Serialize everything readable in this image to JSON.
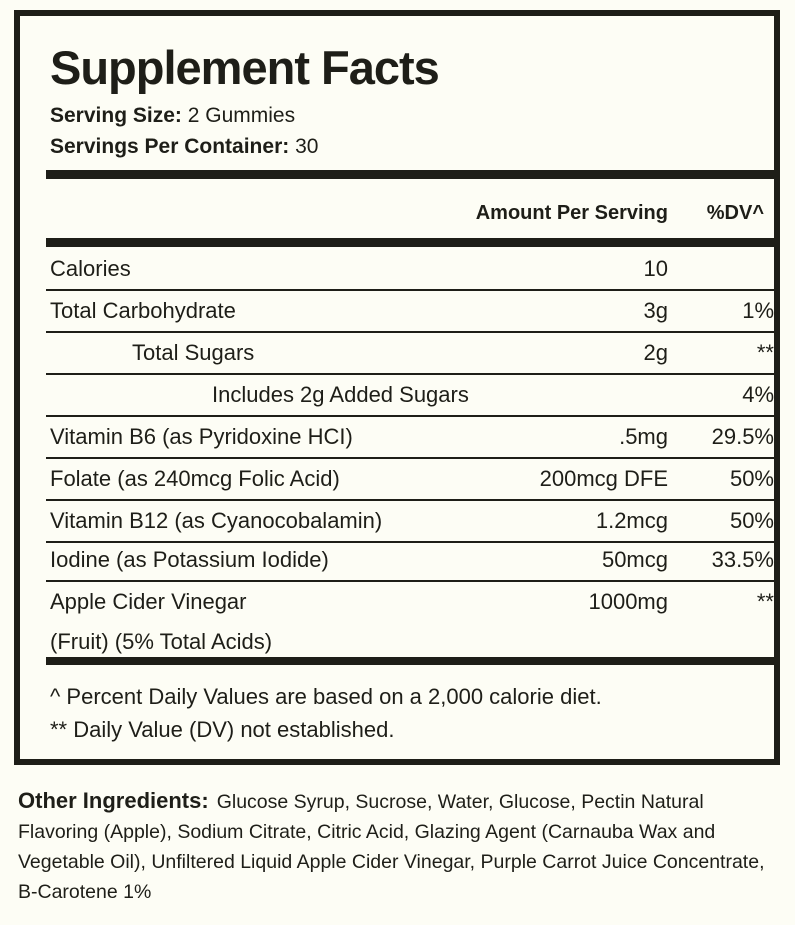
{
  "title": "Supplement Facts",
  "serving_size": {
    "label": "Serving Size:",
    "value": "2 Gummies"
  },
  "servings_per_container": {
    "label": "Servings Per Container:",
    "value": "30"
  },
  "columns": {
    "amount": "Amount Per Serving",
    "dv": "%DV^"
  },
  "rows": [
    {
      "label": "Calories",
      "amount": "10",
      "dv": ""
    },
    {
      "label": "Total Carbohydrate",
      "amount": "3g",
      "dv": "1%"
    },
    {
      "label": "Total Sugars",
      "amount": "2g",
      "dv": "**"
    },
    {
      "label": "Includes 2g Added Sugars",
      "amount": "",
      "dv": "4%"
    },
    {
      "label": "Vitamin B6 (as Pyridoxine HCI)",
      "amount": ".5mg",
      "dv": "29.5%"
    },
    {
      "label": "Folate (as 240mcg Folic Acid)",
      "amount": "200mcg DFE",
      "dv": "50%"
    },
    {
      "label": "Vitamin B12 (as Cyanocobalamin)",
      "amount": "1.2mcg",
      "dv": "50%"
    },
    {
      "label": "Iodine (as Potassium Iodide)",
      "amount": "50mcg",
      "dv": "33.5%"
    },
    {
      "label": "Apple Cider Vinegar",
      "label_line2": "(Fruit) (5% Total Acids)",
      "amount": "1000mg",
      "dv": "**"
    }
  ],
  "footnotes": [
    "^ Percent Daily Values are based on a 2,000 calorie diet.",
    "** Daily Value (DV) not established."
  ],
  "other_ingredients": {
    "label": "Other Ingredients:",
    "text": "Glucose Syrup, Sucrose, Water, Glucose, Pectin Natural Flavoring (Apple), Sodium Citrate, Citric Acid, Glazing Agent (Carnauba Wax and Vegetable Oil), Unfiltered Liquid Apple Cider Vinegar, Purple Carrot Juice Concentrate, B-Carotene 1%"
  }
}
